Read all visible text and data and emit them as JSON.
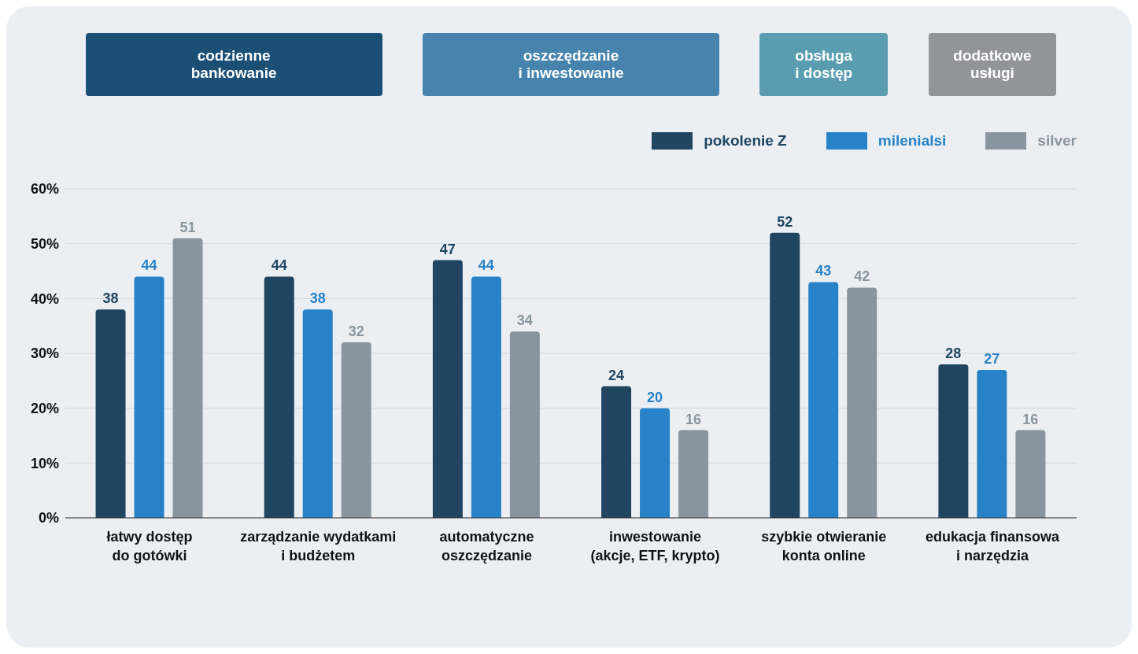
{
  "chart_data": {
    "type": "bar",
    "categories": [
      "łatwy dostęp\ndo gotówki",
      "zarządzanie wydatkami\ni budżetem",
      "automatyczne\noszczędzanie",
      "inwestowanie\n(akcje, ETF, krypto)",
      "szybkie otwieranie\nkonta online",
      "edukacja finansowa\ni narzędzia"
    ],
    "series": [
      {
        "name": "pokolenie Z",
        "color": "#1f4560",
        "values": [
          38,
          44,
          47,
          24,
          52,
          28
        ]
      },
      {
        "name": "milenialsi",
        "color": "#2882c8",
        "values": [
          44,
          38,
          44,
          20,
          43,
          27
        ]
      },
      {
        "name": "silver",
        "color": "#89959e",
        "values": [
          51,
          32,
          34,
          16,
          42,
          16
        ]
      }
    ],
    "ylim": [
      0,
      60
    ],
    "yticks": [
      {
        "value": 0,
        "label": "0%"
      },
      {
        "value": 10,
        "label": "10%"
      },
      {
        "value": 20,
        "label": "20%"
      },
      {
        "value": 30,
        "label": "30%"
      },
      {
        "value": 40,
        "label": "40%"
      },
      {
        "value": 50,
        "label": "50%"
      },
      {
        "value": 60,
        "label": "60%"
      }
    ],
    "grid": "y",
    "legend": "top right",
    "data_labels": true,
    "annotations": [
      "codzienne\nbankowanie",
      "oszczędzanie\ni inwestowanie",
      "obsługa\ni dostęp",
      "dodatkowe\nusługi"
    ]
  }
}
